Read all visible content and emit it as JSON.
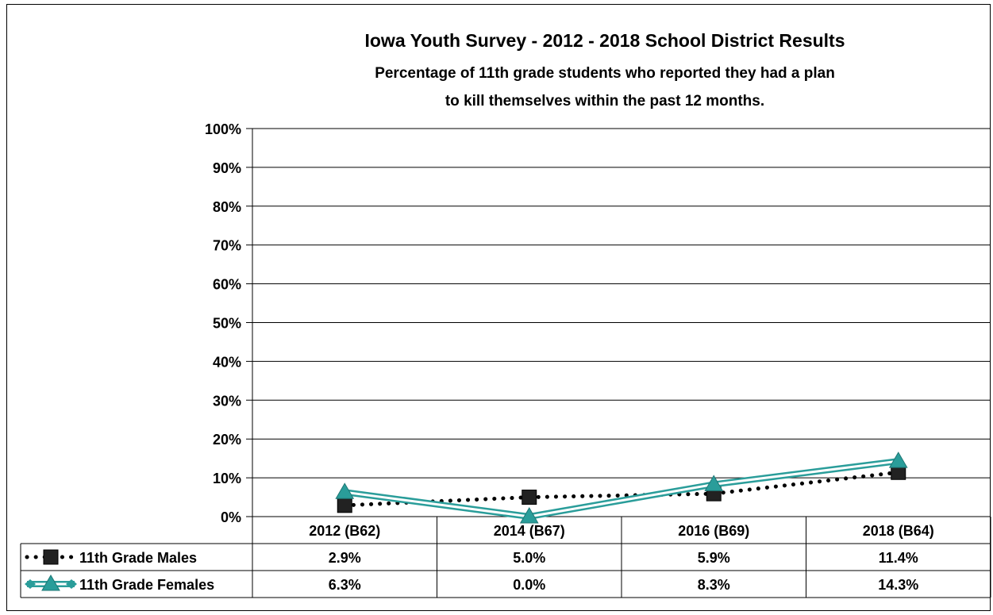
{
  "chart_data": {
    "type": "line",
    "title": "Iowa Youth Survey - 2012 - 2018 School District Results",
    "subtitle_lines": [
      "Percentage of 11th grade students who reported they had a plan",
      "to kill themselves within the past 12 months."
    ],
    "categories": [
      "2012 (B62)",
      "2014 (B67)",
      "2016 (B69)",
      "2018 (B64)"
    ],
    "ylim": [
      0,
      100
    ],
    "yticks": [
      0,
      10,
      20,
      30,
      40,
      50,
      60,
      70,
      80,
      90,
      100
    ],
    "ytick_labels": [
      "0%",
      "10%",
      "20%",
      "30%",
      "40%",
      "50%",
      "60%",
      "70%",
      "80%",
      "90%",
      "100%"
    ],
    "grid": true,
    "legend": "data-table",
    "series": [
      {
        "name": "11th Grade Males",
        "values": [
          2.9,
          5.0,
          5.9,
          11.4
        ],
        "labels": [
          "2.9%",
          "5.0%",
          "5.9%",
          "11.4%"
        ],
        "color": "#000000",
        "marker": "square",
        "line_style": "dotted"
      },
      {
        "name": "11th Grade Females",
        "values": [
          6.3,
          0.0,
          8.3,
          14.3
        ],
        "labels": [
          "6.3%",
          "0.0%",
          "8.3%",
          "14.3%"
        ],
        "color": "#2a9d9a",
        "marker": "triangle",
        "line_style": "double"
      }
    ]
  }
}
